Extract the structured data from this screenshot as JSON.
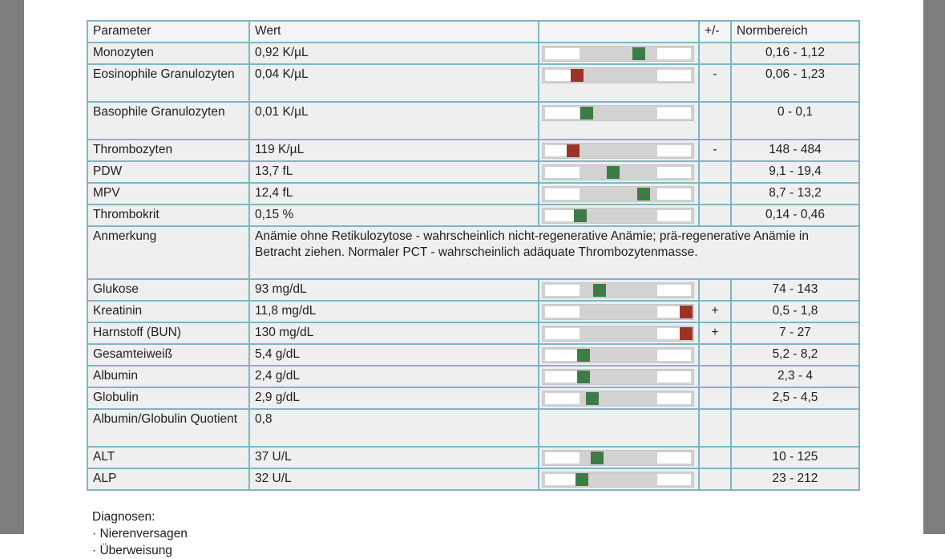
{
  "colors": {
    "table_border": "#7fb5c4",
    "row_background": "#efefef",
    "header_background": "#f4f4f4",
    "bar_track": "#d2d2d2",
    "bar_range_zone": "#ffffff",
    "marker_in_range_green": "#3e7b46",
    "marker_out_of_range_red": "#9d3328",
    "window_edge_gray": "#7d7d7d"
  },
  "table": {
    "headers": {
      "parameter": "Parameter",
      "wert": "Wert",
      "bar": "",
      "flag": "+/-",
      "normbereich": "Normbereich"
    },
    "rows": [
      {
        "parameter": "Monozyten",
        "wert": "0,92 K/µL",
        "flag": "",
        "range": "0,16 - 1,12",
        "marker": {
          "pos": 64,
          "color": "green"
        }
      },
      {
        "parameter": "Eosinophile Granulozyten",
        "wert": "0,04 K/µL",
        "flag": "-",
        "range": "0,06 - 1,23",
        "marker": {
          "pos": 23,
          "color": "red"
        }
      },
      {
        "parameter": "Basophile Granulozyten",
        "wert": "0,01 K/µL",
        "flag": "",
        "range": "0 - 0,1",
        "marker": {
          "pos": 29,
          "color": "green"
        }
      },
      {
        "parameter": "Thrombozyten",
        "wert": "119 K/µL",
        "flag": "-",
        "range": "148 - 484",
        "marker": {
          "pos": 20,
          "color": "red"
        }
      },
      {
        "parameter": "PDW",
        "wert": "13,7 fL",
        "flag": "",
        "range": "9,1 - 19,4",
        "marker": {
          "pos": 47,
          "color": "green"
        }
      },
      {
        "parameter": "MPV",
        "wert": "12,4 fL",
        "flag": "",
        "range": "8,7 - 13,2",
        "marker": {
          "pos": 67,
          "color": "green"
        }
      },
      {
        "parameter": "Thrombokrit",
        "wert": "0,15 %",
        "flag": "",
        "range": "0,14 - 0,46",
        "marker": {
          "pos": 25,
          "color": "green"
        }
      },
      {
        "type": "note",
        "parameter": "Anmerkung",
        "text": "Anämie ohne Retikulozytose - wahrscheinlich nicht-regenerative Anämie; prä-regenerative Anämie in Betracht ziehen. Normaler PCT - wahrscheinlich adäquate Thrombozytenmasse."
      },
      {
        "parameter": "Glukose",
        "wert": "93 mg/dL",
        "flag": "",
        "range": "74 - 143",
        "marker": {
          "pos": 38,
          "color": "green"
        }
      },
      {
        "parameter": "Kreatinin",
        "wert": "11,8 mg/dL",
        "flag": "+",
        "range": "0,5 - 1,8",
        "marker": {
          "pos": 95,
          "color": "red"
        }
      },
      {
        "parameter": "Harnstoff (BUN)",
        "wert": "130 mg/dL",
        "flag": "+",
        "range": "7 - 27",
        "marker": {
          "pos": 95,
          "color": "red"
        }
      },
      {
        "parameter": "Gesamteiweiß",
        "wert": "5,4 g/dL",
        "flag": "",
        "range": "5,2 - 8,2",
        "marker": {
          "pos": 27,
          "color": "green"
        }
      },
      {
        "parameter": "Albumin",
        "wert": "2,4 g/dL",
        "flag": "",
        "range": "2,3 - 4",
        "marker": {
          "pos": 27,
          "color": "green"
        }
      },
      {
        "parameter": "Globulin",
        "wert": "2,9 g/dL",
        "flag": "",
        "range": "2,5 - 4,5",
        "marker": {
          "pos": 33,
          "color": "green"
        }
      },
      {
        "parameter": "Albumin/Globulin Quotient",
        "wert": "0,8",
        "flag": "",
        "range": "",
        "marker": null
      },
      {
        "parameter": "ALT",
        "wert": "37 U/L",
        "flag": "",
        "range": "10 - 125",
        "marker": {
          "pos": 36,
          "color": "green"
        }
      },
      {
        "parameter": "ALP",
        "wert": "32 U/L",
        "flag": "",
        "range": "23 - 212",
        "marker": {
          "pos": 26,
          "color": "green"
        }
      }
    ]
  },
  "diagnoses": {
    "title": "Diagnosen:",
    "items": [
      "· Nierenversagen",
      "· Überweisung"
    ]
  }
}
